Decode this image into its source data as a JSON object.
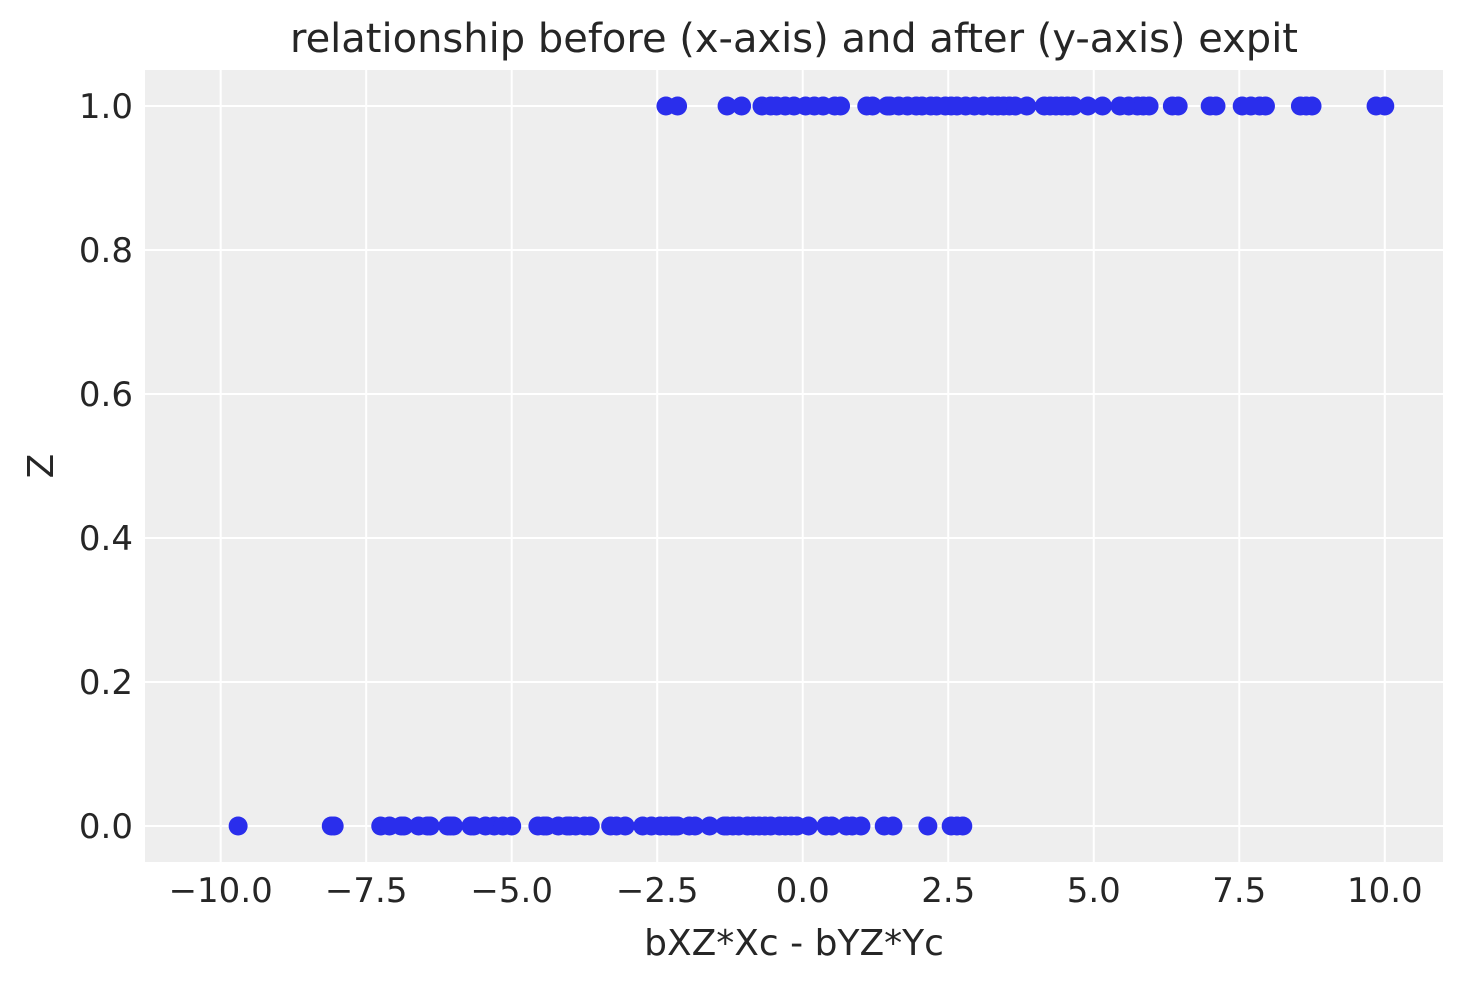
{
  "chart_data": {
    "type": "scatter",
    "title": "relationship before (x-axis) and after (y-axis) expit",
    "xlabel": "bXZ*Xc - bYZ*Yc",
    "ylabel": "Z",
    "xlim": [
      -11.3,
      11.0
    ],
    "ylim": [
      -0.05,
      1.05
    ],
    "xticks": [
      -10.0,
      -7.5,
      -5.0,
      -2.5,
      0.0,
      2.5,
      5.0,
      7.5,
      10.0
    ],
    "xtick_labels": [
      "−10.0",
      "−7.5",
      "−5.0",
      "−2.5",
      "0.0",
      "2.5",
      "5.0",
      "7.5",
      "10.0"
    ],
    "yticks": [
      0.0,
      0.2,
      0.4,
      0.6,
      0.8,
      1.0
    ],
    "ytick_labels": [
      "0.0",
      "0.2",
      "0.4",
      "0.6",
      "0.8",
      "1.0"
    ],
    "grid": true,
    "colors": {
      "points": "#2a2eec",
      "plot_background": "#eeeeee",
      "grid": "#ffffff"
    },
    "series": [
      {
        "x": [
          -9.7,
          -8.1,
          -8.05,
          -7.25,
          -7.1,
          -6.9,
          -6.85,
          -6.6,
          -6.45,
          -6.4,
          -6.1,
          -6.05,
          -6.0,
          -5.7,
          -5.65,
          -5.45,
          -5.3,
          -5.15,
          -5.0,
          -4.55,
          -4.45,
          -4.4,
          -4.2,
          -4.05,
          -4.0,
          -3.9,
          -3.75,
          -3.65,
          -3.3,
          -3.2,
          -3.05,
          -2.75,
          -2.6,
          -2.45,
          -2.35,
          -2.25,
          -2.2,
          -2.15,
          -1.95,
          -1.85,
          -1.6,
          -1.35,
          -1.3,
          -1.2,
          -1.1,
          -0.95,
          -0.85,
          -0.75,
          -0.65,
          -0.55,
          -0.4,
          -0.3,
          -0.2,
          -0.1,
          0.1,
          0.4,
          0.5,
          0.75,
          0.85,
          1.0,
          1.4,
          1.55,
          2.15,
          2.55,
          2.65,
          2.75
        ],
        "y": [
          0,
          0,
          0,
          0,
          0,
          0,
          0,
          0,
          0,
          0,
          0,
          0,
          0,
          0,
          0,
          0,
          0,
          0,
          0,
          0,
          0,
          0,
          0,
          0,
          0,
          0,
          0,
          0,
          0,
          0,
          0,
          0,
          0,
          0,
          0,
          0,
          0,
          0,
          0,
          0,
          0,
          0,
          0,
          0,
          0,
          0,
          0,
          0,
          0,
          0,
          0,
          0,
          0,
          0,
          0,
          0,
          0,
          0,
          0,
          0,
          0,
          0,
          0,
          0,
          0,
          0
        ]
      },
      {
        "x": [
          -2.35,
          -2.15,
          -1.3,
          -1.05,
          -0.7,
          -0.55,
          -0.45,
          -0.3,
          -0.15,
          0.05,
          0.2,
          0.35,
          0.55,
          0.65,
          1.1,
          1.2,
          1.45,
          1.5,
          1.65,
          1.8,
          1.95,
          2.05,
          2.2,
          2.3,
          2.45,
          2.55,
          2.65,
          2.8,
          2.95,
          3.1,
          3.25,
          3.35,
          3.45,
          3.55,
          3.65,
          3.85,
          4.15,
          4.25,
          4.35,
          4.45,
          4.55,
          4.65,
          4.9,
          5.15,
          5.45,
          5.6,
          5.75,
          5.85,
          5.95,
          6.35,
          6.45,
          7.0,
          7.1,
          7.55,
          7.7,
          7.85,
          7.95,
          8.55,
          8.65,
          8.75,
          9.85,
          10.0
        ],
        "y": [
          1,
          1,
          1,
          1,
          1,
          1,
          1,
          1,
          1,
          1,
          1,
          1,
          1,
          1,
          1,
          1,
          1,
          1,
          1,
          1,
          1,
          1,
          1,
          1,
          1,
          1,
          1,
          1,
          1,
          1,
          1,
          1,
          1,
          1,
          1,
          1,
          1,
          1,
          1,
          1,
          1,
          1,
          1,
          1,
          1,
          1,
          1,
          1,
          1,
          1,
          1,
          1,
          1,
          1,
          1,
          1,
          1,
          1,
          1,
          1,
          1,
          1
        ]
      }
    ]
  }
}
